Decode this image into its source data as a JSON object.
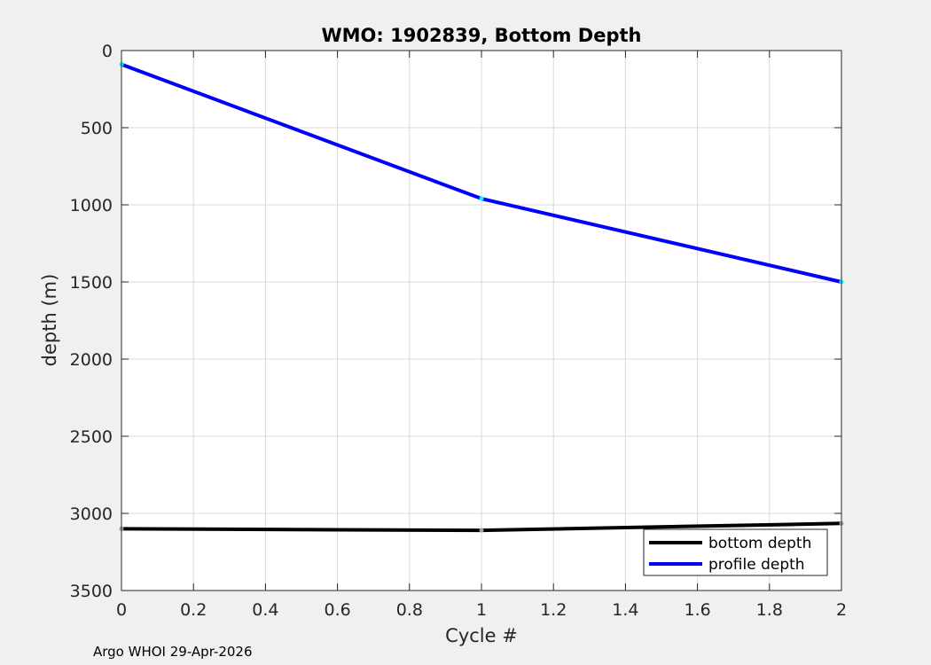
{
  "chart_data": {
    "type": "line",
    "title": "WMO: 1902839, Bottom Depth",
    "xlabel": "Cycle #",
    "ylabel": "depth (m)",
    "xlim": [
      0,
      2
    ],
    "ylim": [
      0,
      3500
    ],
    "y_reversed": true,
    "x_ticks": [
      "0",
      "0.2",
      "0.4",
      "0.6",
      "0.8",
      "1",
      "1.2",
      "1.4",
      "1.6",
      "1.8",
      "2"
    ],
    "y_ticks": [
      "0",
      "500",
      "1000",
      "1500",
      "2000",
      "2500",
      "3000",
      "3500"
    ],
    "grid": true,
    "legend_position": "bottom-right",
    "series": [
      {
        "name": "bottom depth",
        "color": "#000000",
        "marker_color": "#a0a0a0",
        "x": [
          0,
          1,
          2
        ],
        "y": [
          3100,
          3110,
          3065
        ]
      },
      {
        "name": "profile depth",
        "color": "#0000ff",
        "marker_color": "#00ffff",
        "x": [
          0,
          1,
          2
        ],
        "y": [
          90,
          960,
          1500
        ]
      }
    ]
  },
  "footer": {
    "text": "Argo WHOI 29-Apr-2026"
  }
}
